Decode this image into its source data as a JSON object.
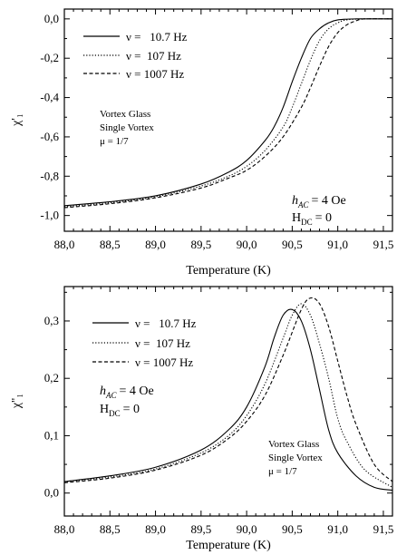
{
  "chart_data": [
    {
      "type": "line",
      "xlabel": "Temperature (K)",
      "ylabel": "χ'₁",
      "xlim": [
        88.0,
        91.6
      ],
      "ylim": [
        -1.08,
        0.05
      ],
      "xticks": [
        "88,0",
        "88,5",
        "89,0",
        "89,5",
        "90,0",
        "90,5",
        "91,0",
        "91,5"
      ],
      "yticks": [
        "0,0",
        "-0,2",
        "-0,4",
        "-0,6",
        "-0,8",
        "-1,0"
      ],
      "ytick_values": [
        0.0,
        -0.2,
        -0.4,
        -0.6,
        -0.8,
        -1.0
      ],
      "legend_position": "top-left",
      "series": [
        {
          "name": "ν =   10.7 Hz",
          "style": "solid",
          "x": [
            88.0,
            88.5,
            89.0,
            89.5,
            89.8,
            90.0,
            90.2,
            90.3,
            90.4,
            90.5,
            90.6,
            90.7,
            90.8,
            90.9,
            91.0,
            91.2,
            91.4,
            91.6
          ],
          "y": [
            -0.95,
            -0.93,
            -0.9,
            -0.84,
            -0.78,
            -0.72,
            -0.62,
            -0.55,
            -0.45,
            -0.32,
            -0.2,
            -0.1,
            -0.05,
            -0.02,
            -0.005,
            0.0,
            0.0,
            0.0
          ]
        },
        {
          "name": "ν =  107 Hz",
          "style": "dotted",
          "x": [
            88.0,
            88.5,
            89.0,
            89.5,
            89.8,
            90.0,
            90.2,
            90.4,
            90.5,
            90.6,
            90.7,
            90.8,
            90.9,
            91.0,
            91.1,
            91.3,
            91.6
          ],
          "y": [
            -0.955,
            -0.935,
            -0.905,
            -0.85,
            -0.8,
            -0.75,
            -0.67,
            -0.55,
            -0.45,
            -0.33,
            -0.21,
            -0.11,
            -0.05,
            -0.02,
            -0.005,
            0.0,
            0.0
          ]
        },
        {
          "name": "ν = 1007 Hz",
          "style": "dashed",
          "x": [
            88.0,
            88.5,
            89.0,
            89.5,
            89.8,
            90.0,
            90.2,
            90.4,
            90.6,
            90.7,
            90.8,
            90.9,
            91.0,
            91.1,
            91.2,
            91.3,
            91.6
          ],
          "y": [
            -0.96,
            -0.94,
            -0.91,
            -0.86,
            -0.81,
            -0.77,
            -0.7,
            -0.6,
            -0.45,
            -0.35,
            -0.24,
            -0.14,
            -0.07,
            -0.03,
            -0.01,
            0.0,
            0.0
          ]
        }
      ],
      "annotations": {
        "model_line1": "Vortex Glass",
        "model_line2": "Single Vortex",
        "mu": "μ = 1/7",
        "hac_sym": "h",
        "hac_sub": "AC",
        "hac_val": "= 4 Oe",
        "hdc_sym": "H",
        "hdc_sub": "DC",
        "hdc_val": "= 0"
      }
    },
    {
      "type": "line",
      "xlabel": "Temperature (K)",
      "ylabel": "χ''₁",
      "xlim": [
        88.0,
        91.6
      ],
      "ylim": [
        -0.04,
        0.36
      ],
      "xticks": [
        "88,0",
        "88,5",
        "89,0",
        "89,5",
        "90,0",
        "90,5",
        "91,0",
        "91,5"
      ],
      "yticks": [
        "0,0",
        "0,1",
        "0,2",
        "0,3"
      ],
      "ytick_values": [
        0.0,
        0.1,
        0.2,
        0.3
      ],
      "legend_position": "top-left",
      "series": [
        {
          "name": "ν =   10.7 Hz",
          "style": "solid",
          "x": [
            88.0,
            88.5,
            89.0,
            89.5,
            89.8,
            90.0,
            90.2,
            90.3,
            90.4,
            90.5,
            90.6,
            90.7,
            90.8,
            90.9,
            91.0,
            91.2,
            91.4,
            91.6
          ],
          "y": [
            0.02,
            0.03,
            0.045,
            0.075,
            0.11,
            0.15,
            0.22,
            0.27,
            0.31,
            0.32,
            0.3,
            0.25,
            0.18,
            0.11,
            0.07,
            0.03,
            0.01,
            0.005
          ]
        },
        {
          "name": "ν =  107 Hz",
          "style": "dotted",
          "x": [
            88.0,
            88.5,
            89.0,
            89.5,
            89.8,
            90.0,
            90.2,
            90.4,
            90.5,
            90.6,
            90.7,
            90.8,
            90.9,
            91.0,
            91.1,
            91.3,
            91.6
          ],
          "y": [
            0.02,
            0.028,
            0.042,
            0.07,
            0.1,
            0.135,
            0.19,
            0.27,
            0.31,
            0.33,
            0.31,
            0.26,
            0.2,
            0.13,
            0.09,
            0.04,
            0.01
          ]
        },
        {
          "name": "ν = 1007 Hz",
          "style": "dashed",
          "x": [
            88.0,
            88.5,
            89.0,
            89.5,
            89.8,
            90.0,
            90.2,
            90.4,
            90.6,
            90.7,
            90.8,
            90.9,
            91.0,
            91.1,
            91.2,
            91.4,
            91.6
          ],
          "y": [
            0.018,
            0.026,
            0.04,
            0.066,
            0.095,
            0.125,
            0.17,
            0.24,
            0.32,
            0.34,
            0.33,
            0.29,
            0.23,
            0.17,
            0.12,
            0.05,
            0.02
          ]
        }
      ],
      "annotations": {
        "model_line1": "Vortex Glass",
        "model_line2": "Single Vortex",
        "mu": "μ = 1/7",
        "hac_sym": "h",
        "hac_sub": "AC",
        "hac_val": "= 4 Oe",
        "hdc_sym": "H",
        "hdc_sub": "DC",
        "hdc_val": "= 0"
      }
    }
  ]
}
